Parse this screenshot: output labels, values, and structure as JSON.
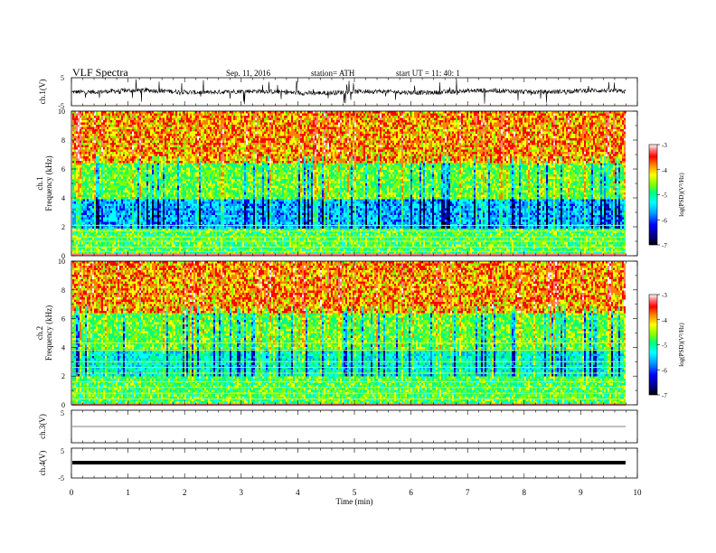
{
  "header": {
    "title": "VLF  Spectra",
    "date": "Sep. 11, 2016",
    "station": "station= ATH",
    "start": "start  UT  =   11: 40: 1"
  },
  "colors": {
    "spectrogram_scale": [
      "#000000",
      "#000080",
      "#0000ff",
      "#00a0ff",
      "#00ffff",
      "#00ff80",
      "#80ff00",
      "#ffff00",
      "#ff8000",
      "#ff0000",
      "#ff8080",
      "#ffffff"
    ]
  },
  "chart_data": [
    {
      "type": "line",
      "panel": "ch1-waveform",
      "ylabel": "ch.1(V)",
      "ylim": [
        -5,
        5
      ],
      "ytick_labels": [
        "5",
        "-5"
      ],
      "xlim": [
        0,
        10
      ],
      "note_visible": "dense noisy waveform around 0 V"
    },
    {
      "type": "heatmap",
      "panel": "ch1-spectrogram",
      "ylabel_top": "ch.1",
      "ylabel": "Frequency  (kHz)",
      "ylim": [
        0,
        10
      ],
      "ytick_labels": [
        "0",
        "2",
        "4",
        "6",
        "8",
        "10"
      ],
      "xlim": [
        0,
        10
      ],
      "colorbar": {
        "label": "log(PSD)(V²/Hz)",
        "range": [
          -7,
          -3
        ],
        "tick_labels": [
          "-3",
          "-4",
          "-5",
          "-6",
          "-7"
        ]
      }
    },
    {
      "type": "heatmap",
      "panel": "ch2-spectrogram",
      "ylabel_top": "ch.2",
      "ylabel": "Frequency  (kHz)",
      "ylim": [
        0,
        10
      ],
      "ytick_labels": [
        "0",
        "2",
        "4",
        "6",
        "8",
        "10"
      ],
      "xlim": [
        0,
        10
      ],
      "colorbar": {
        "label": "log(PSD)(V²/Hz)",
        "range": [
          -7,
          -3
        ],
        "tick_labels": [
          "-3",
          "-4",
          "-5",
          "-6",
          "-7"
        ]
      }
    },
    {
      "type": "line",
      "panel": "ch3-waveform",
      "ylabel": "ch.3(V)",
      "ylim": [
        -5,
        5
      ],
      "ytick_labels": [
        "5"
      ],
      "xlim": [
        0,
        10
      ]
    },
    {
      "type": "line",
      "panel": "ch4-waveform",
      "ylabel": "ch.4(V)",
      "ylim": [
        -5,
        5
      ],
      "ytick_labels": [
        "5",
        "-5"
      ],
      "xlim": [
        0,
        10
      ]
    },
    {
      "type": "axis",
      "xlabel": "Time  (min)",
      "xlim": [
        0,
        10
      ],
      "xtick_labels": [
        "0",
        "1",
        "2",
        "3",
        "4",
        "5",
        "6",
        "7",
        "8",
        "9",
        "10"
      ]
    }
  ]
}
